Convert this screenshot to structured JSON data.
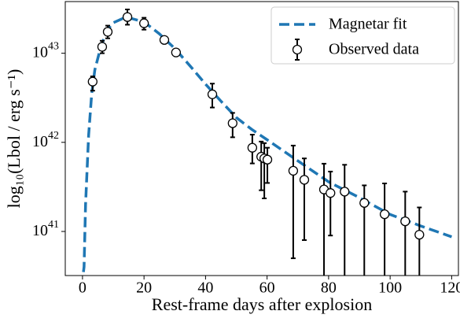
{
  "chart_data": {
    "type": "scatter",
    "xlabel": "Rest-frame days after explosion",
    "ylabel": "log₁₀(Lbol / erg s⁻¹)",
    "xlim": [
      -5.6,
      122.2
    ],
    "xticks": [
      0,
      20,
      40,
      60,
      80,
      100,
      120
    ],
    "ylim": [
      3.2e+40,
      3.8e+43
    ],
    "ylog": true,
    "yticks": [
      {
        "value": 1e+41,
        "label": "10^41"
      },
      {
        "value": 1e+42,
        "label": "10^42"
      },
      {
        "value": 1e+43,
        "label": "10^43"
      }
    ],
    "legend": "upper right",
    "series": [
      {
        "name": "Magnetar fit",
        "type": "line",
        "color": "#1f77b4",
        "x": [
          0.3,
          0.5,
          1,
          2,
          3,
          4,
          6,
          8,
          10,
          13,
          16,
          20,
          25,
          30,
          35,
          40,
          45,
          50,
          55,
          60,
          70,
          80,
          90,
          100,
          110,
          120
        ],
        "values": [
          3.5e+40,
          4e+40,
          2e+41,
          1.2e+42,
          3.5e+42,
          6.5e+42,
          1.2e+43,
          1.8e+43,
          2.2e+43,
          2.45e+43,
          2.45e+43,
          2.25e+43,
          1.65e+43,
          1.13e+43,
          7.2e+42,
          4.5e+42,
          2.9e+42,
          1.9e+42,
          1.4e+42,
          1.07e+42,
          6.2e+41,
          3.6e+41,
          2.4e+41,
          1.55e+41,
          1.15e+41,
          8.7e+40
        ]
      },
      {
        "name": "Observed data",
        "type": "errorbar",
        "color": "#000000",
        "x": [
          3.3,
          6.4,
          8.2,
          14.6,
          20.0,
          26.6,
          30.4,
          42.2,
          48.8,
          55.2,
          58.1,
          59.1,
          60.1,
          68.5,
          72.1,
          78.5,
          80.6,
          85.2,
          91.6,
          98.2,
          104.9,
          109.5
        ],
        "values": [
          4.8e+42,
          1.18e+43,
          1.74e+43,
          2.55e+43,
          2.17e+43,
          1.41e+43,
          1.02e+43,
          3.46e+42,
          1.64e+42,
          8.7e+41,
          6.9e+41,
          6.6e+41,
          6.4e+41,
          4.8e+41,
          3.8e+41,
          2.96e+41,
          2.7e+41,
          2.8e+41,
          2.09e+41,
          1.56e+41,
          1.3e+41,
          9.2e+40
        ],
        "err_high": [
          7e+41,
          2e+42,
          3e+42,
          5.5e+42,
          3.3e+42,
          8e+41,
          5e+41,
          1.1e+42,
          5e+41,
          3.5e+41,
          3.3e+41,
          3.2e+41,
          2.3e+41,
          4.4e+41,
          2.8e+41,
          2.8e+41,
          2e+41,
          2.8e+41,
          1.2e+41,
          1.9e+41,
          1.5e+41,
          9.4e+40
        ],
        "err_low": [
          1e+42,
          1.8e+42,
          2.7e+42,
          4.6e+42,
          3.3e+42,
          8e+41,
          5e+41,
          1e+42,
          5e+41,
          2.9e+41,
          4e+41,
          4.25e+41,
          2.9e+41,
          4.3e+41,
          3e+41,
          2.95e+41,
          1.8e+41,
          2.79e+41,
          2.08e+41,
          1.55e+41,
          1.29e+41,
          9.1e+40
        ]
      }
    ]
  }
}
